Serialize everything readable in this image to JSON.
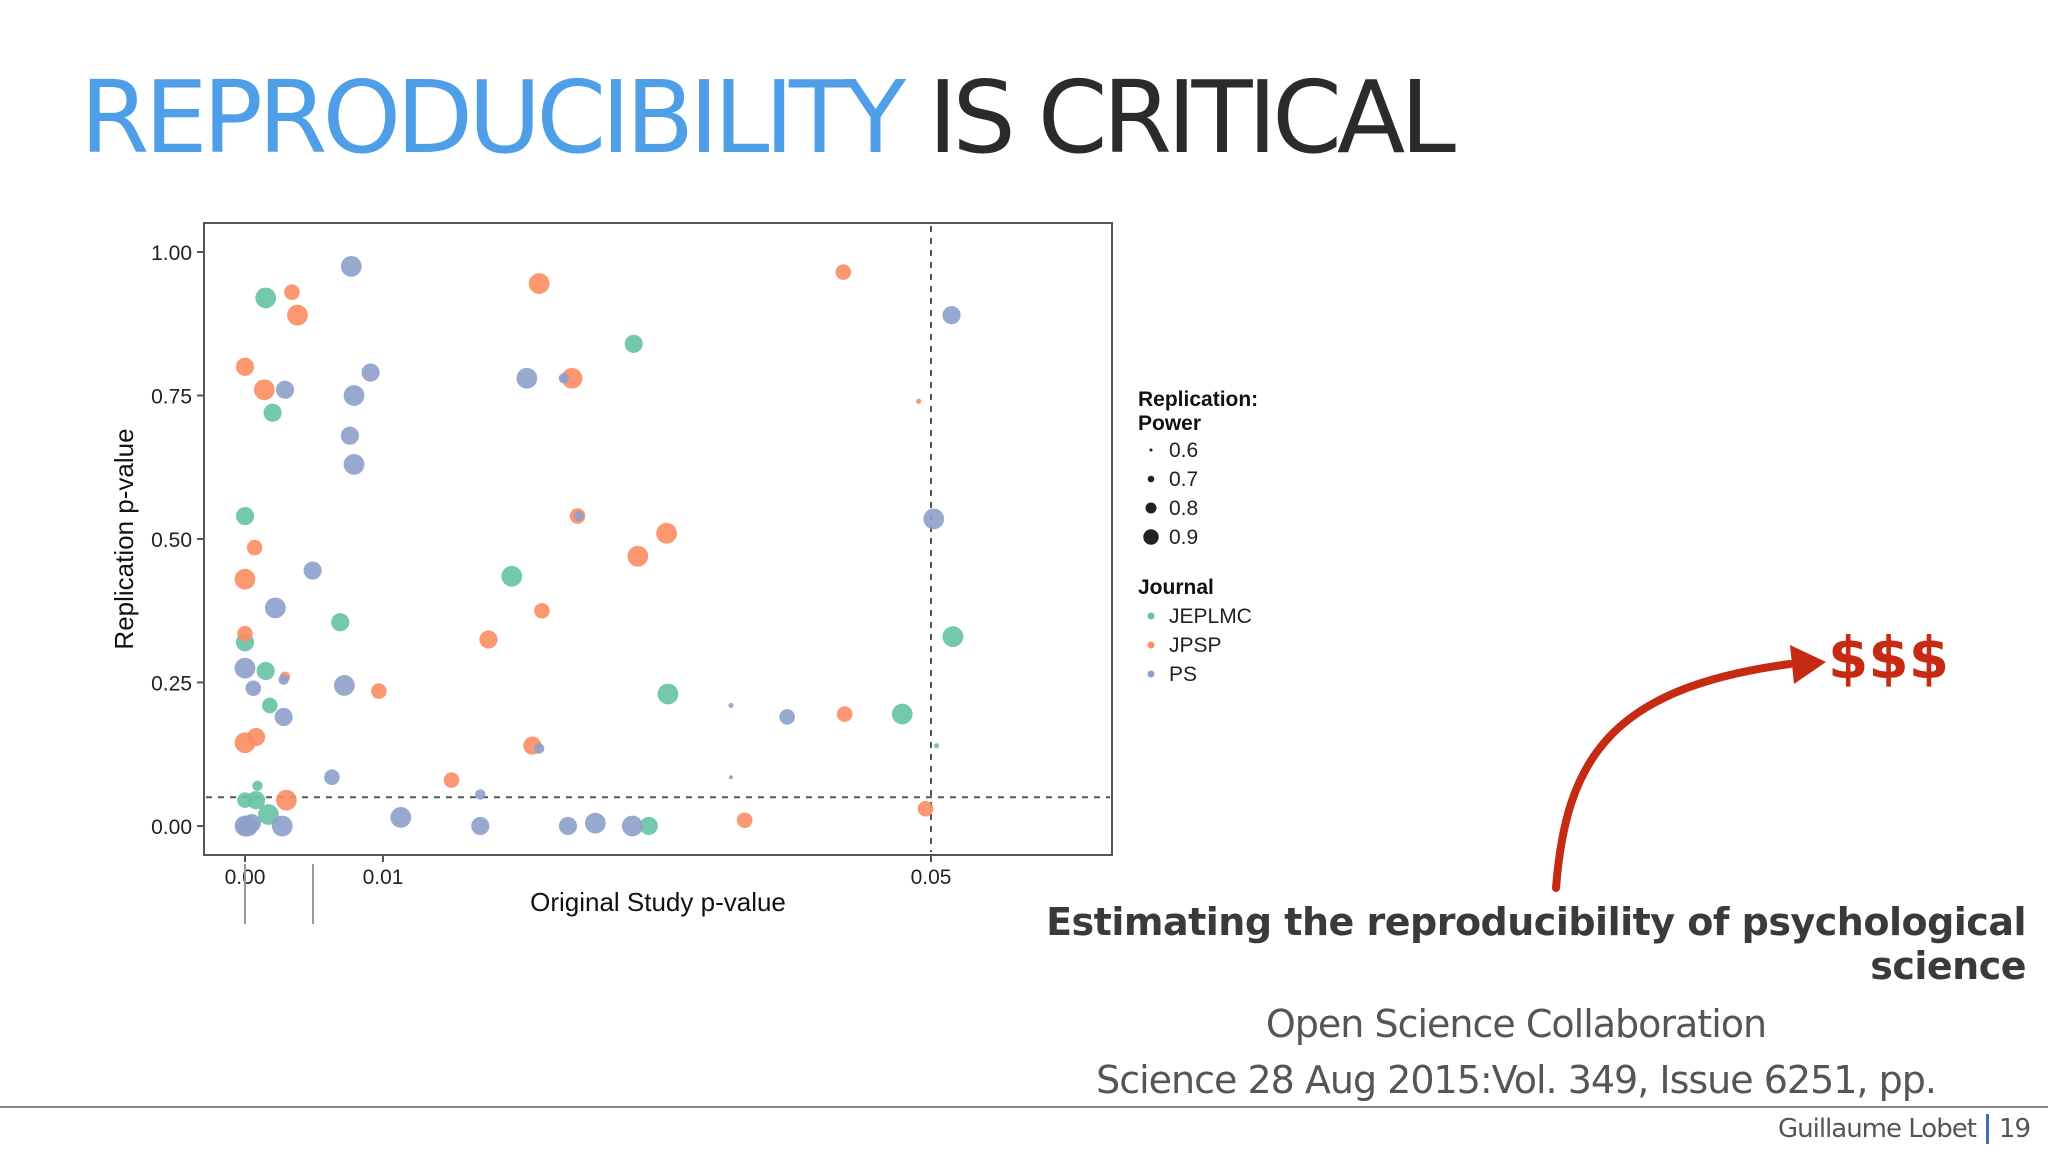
{
  "slide": {
    "title_accent": "REPRODUCIBILITY",
    "title_rest": " IS CRITICAL",
    "annotation": "$$$",
    "caption": {
      "paper_title": "Estimating the reproducibility of psychological science",
      "authors": "Open Science Collaboration",
      "citation": "Science  28 Aug 2015:Vol. 349, Issue 6251, pp."
    },
    "footer": {
      "author": "Guillaume Lobet",
      "page": "19"
    },
    "colors": {
      "accent": "#4f9fe8",
      "arrow": "#c62a12"
    }
  },
  "chart_data": {
    "type": "scatter",
    "xlabel": "Original Study p-value",
    "ylabel": "Replication p-value",
    "x_ticks": [
      "0.00",
      "0.01",
      "0.05"
    ],
    "y_ticks": [
      "0.00",
      "0.25",
      "0.50",
      "0.75",
      "1.00"
    ],
    "y_range": [
      0,
      1
    ],
    "reference_lines": {
      "x": 0.05,
      "y": 0.05
    },
    "legend": {
      "size_title": "Replication:\nPower",
      "size_title_line1": "Replication:",
      "size_title_line2": "Power",
      "sizes": [
        {
          "label": "0.6",
          "power": 0.6
        },
        {
          "label": "0.7",
          "power": 0.7
        },
        {
          "label": "0.8",
          "power": 0.8
        },
        {
          "label": "0.9",
          "power": 0.9
        }
      ],
      "color_title": "Journal",
      "journals": [
        {
          "name": "JEPLMC",
          "color": "#66c2a5"
        },
        {
          "name": "JPSP",
          "color": "#fc8d62"
        },
        {
          "name": "PS",
          "color": "#8da0cb"
        }
      ]
    },
    "series": [
      {
        "name": "JEPLMC",
        "color": "#66c2a5",
        "points": [
          [
            0.0015,
            0.92,
            0.9
          ],
          [
            0.002,
            0.72,
            0.85
          ],
          [
            0.0,
            0.54,
            0.85
          ],
          [
            0.0,
            0.32,
            0.85
          ],
          [
            0.0015,
            0.27,
            0.85
          ],
          [
            0.0018,
            0.21,
            0.8
          ],
          [
            0.0009,
            0.07,
            0.7
          ],
          [
            0.0,
            0.045,
            0.8
          ],
          [
            0.0008,
            0.045,
            0.85
          ],
          [
            0.0017,
            0.02,
            0.9
          ],
          [
            0.0069,
            0.355,
            0.85
          ],
          [
            0.0194,
            0.435,
            0.9
          ],
          [
            0.0283,
            0.84,
            0.85
          ],
          [
            0.0308,
            0.23,
            0.9
          ],
          [
            0.0294,
            0.0,
            0.85
          ],
          [
            0.0479,
            0.195,
            0.9
          ],
          [
            0.0504,
            0.14,
            0.6
          ],
          [
            0.0516,
            0.33,
            0.9
          ]
        ]
      },
      {
        "name": "JPSP",
        "color": "#fc8d62",
        "points": [
          [
            0.0,
            0.8,
            0.85
          ],
          [
            0.0014,
            0.76,
            0.9
          ],
          [
            0.0034,
            0.93,
            0.8
          ],
          [
            0.0038,
            0.89,
            0.9
          ],
          [
            0.0007,
            0.485,
            0.8
          ],
          [
            0.0,
            0.43,
            0.9
          ],
          [
            0.0,
            0.335,
            0.8
          ],
          [
            0.0029,
            0.26,
            0.7
          ],
          [
            0.0,
            0.145,
            0.9
          ],
          [
            0.0008,
            0.155,
            0.85
          ],
          [
            0.003,
            0.045,
            0.9
          ],
          [
            0.0097,
            0.235,
            0.8
          ],
          [
            0.0177,
            0.325,
            0.85
          ],
          [
            0.0214,
            0.945,
            0.9
          ],
          [
            0.0238,
            0.78,
            0.9
          ],
          [
            0.0242,
            0.54,
            0.8
          ],
          [
            0.0216,
            0.375,
            0.8
          ],
          [
            0.0209,
            0.14,
            0.85
          ],
          [
            0.0307,
            0.51,
            0.9
          ],
          [
            0.0286,
            0.47,
            0.9
          ],
          [
            0.015,
            0.08,
            0.8
          ],
          [
            0.0364,
            0.01,
            0.8
          ],
          [
            0.0437,
            0.195,
            0.8
          ],
          [
            0.0436,
            0.965,
            0.8
          ],
          [
            0.0491,
            0.74,
            0.6
          ],
          [
            0.0496,
            0.03,
            0.8
          ]
        ]
      },
      {
        "name": "PS",
        "color": "#8da0cb",
        "points": [
          [
            0.0077,
            0.975,
            0.9
          ],
          [
            0.0029,
            0.76,
            0.85
          ],
          [
            0.0091,
            0.79,
            0.85
          ],
          [
            0.0079,
            0.75,
            0.9
          ],
          [
            0.0076,
            0.68,
            0.85
          ],
          [
            0.0079,
            0.63,
            0.9
          ],
          [
            0.0049,
            0.445,
            0.85
          ],
          [
            0.0022,
            0.38,
            0.9
          ],
          [
            0.0,
            0.275,
            0.9
          ],
          [
            0.0006,
            0.24,
            0.8
          ],
          [
            0.0028,
            0.255,
            0.7
          ],
          [
            0.0028,
            0.19,
            0.85
          ],
          [
            0.0072,
            0.245,
            0.9
          ],
          [
            0.0063,
            0.085,
            0.8
          ],
          [
            0.0,
            0.0,
            0.9
          ],
          [
            0.0002,
            0.0,
            0.9
          ],
          [
            0.0005,
            0.005,
            0.85
          ],
          [
            0.0027,
            0.0,
            0.9
          ],
          [
            0.0113,
            0.015,
            0.9
          ],
          [
            0.0171,
            0.055,
            0.7
          ],
          [
            0.0171,
            0.0,
            0.85
          ],
          [
            0.0205,
            0.78,
            0.9
          ],
          [
            0.0232,
            0.78,
            0.7
          ],
          [
            0.0243,
            0.54,
            0.7
          ],
          [
            0.0214,
            0.135,
            0.7
          ],
          [
            0.0235,
            0.0,
            0.85
          ],
          [
            0.0255,
            0.005,
            0.9
          ],
          [
            0.0282,
            0.0,
            0.9
          ],
          [
            0.0354,
            0.21,
            0.6
          ],
          [
            0.0354,
            0.085,
            0.5
          ],
          [
            0.0395,
            0.19,
            0.8
          ],
          [
            0.0502,
            0.535,
            0.9
          ],
          [
            0.0515,
            0.89,
            0.85
          ]
        ]
      }
    ]
  }
}
